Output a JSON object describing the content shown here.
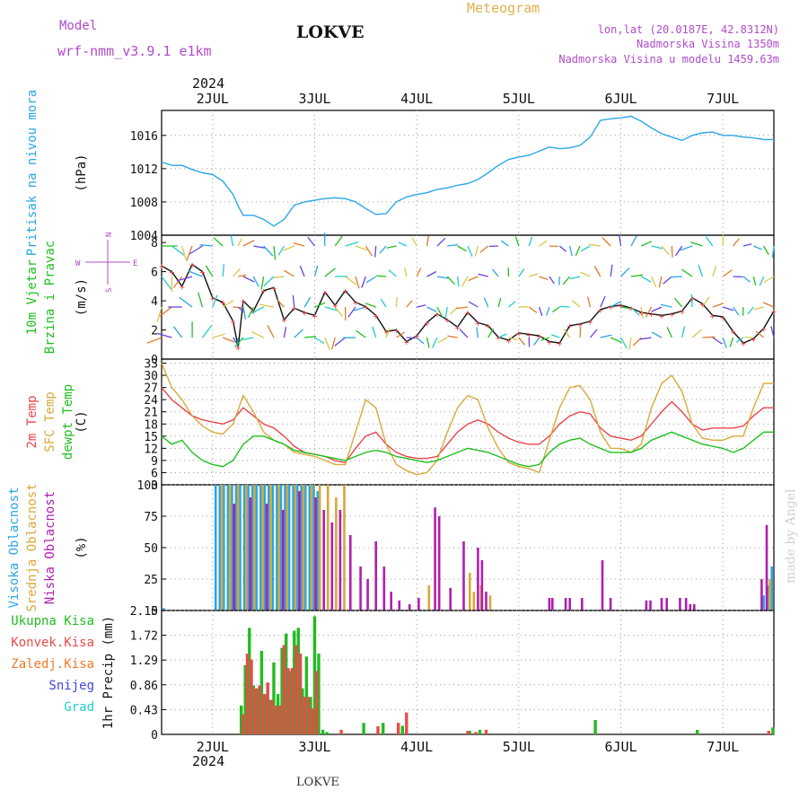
{
  "header": {
    "model_label": "Model",
    "model_name": "wrf-nmm_v3.9.1 e1km",
    "station": "LOKVE",
    "product": "Meteogram",
    "lonlat": "lon,lat (20.0187E, 42.8312N)",
    "elevation": "Nadmorska Visina 1350m",
    "model_elevation": "Nadmorska Visina u modelu 1459.63m",
    "year_top": "2024",
    "year_bottom": "2024",
    "footer_station": "LOKVE",
    "credit": "made by Angel"
  },
  "colors": {
    "pressure": "#2aa6e6",
    "temp2m": "#e8454a",
    "sfc": "#d9a83a",
    "dewpt": "#1fbf1f",
    "high": "#2aa6e6",
    "mid": "#d9a83a",
    "low": "#b01fb0",
    "total": "#22bb22",
    "convective": "#e84a4a",
    "frozen": "#ee7a2a",
    "snow": "#4444dd",
    "grad": "#22cccc",
    "model": "#b04cc9",
    "title_orange": "#e0b04a"
  },
  "axis": {
    "day_labels": [
      "2JUL",
      "3JUL",
      "4JUL",
      "5JUL",
      "6JUL",
      "7JUL"
    ],
    "day_values": [
      2,
      3,
      4,
      5,
      6,
      7
    ],
    "x_range": [
      1.5,
      7.5
    ]
  },
  "chart_data": [
    {
      "type": "line",
      "panel": "pressure",
      "ylabel_lines": [
        "Pritisak na nivou mora",
        "(hPa)"
      ],
      "ylim": [
        1004,
        1019
      ],
      "yticks": [
        1004,
        1008,
        1012,
        1016
      ],
      "grid": true,
      "series": [
        {
          "name": "Pritisak na nivou mora",
          "x": [
            1.5,
            1.6,
            1.7,
            1.8,
            1.9,
            2.0,
            2.1,
            2.2,
            2.25,
            2.3,
            2.4,
            2.5,
            2.6,
            2.7,
            2.8,
            2.9,
            3.0,
            3.1,
            3.2,
            3.3,
            3.4,
            3.5,
            3.6,
            3.7,
            3.8,
            3.9,
            4.0,
            4.1,
            4.2,
            4.3,
            4.4,
            4.5,
            4.6,
            4.7,
            4.8,
            4.9,
            5.0,
            5.1,
            5.2,
            5.3,
            5.4,
            5.5,
            5.6,
            5.7,
            5.8,
            5.9,
            6.0,
            6.1,
            6.2,
            6.3,
            6.4,
            6.5,
            6.6,
            6.7,
            6.8,
            6.9,
            7.0,
            7.1,
            7.2,
            7.3,
            7.4,
            7.5
          ],
          "y": [
            1012.8,
            1012.4,
            1012.4,
            1011.9,
            1011.5,
            1011.3,
            1010.5,
            1008.9,
            1007.5,
            1006.4,
            1006.4,
            1005.9,
            1005.1,
            1005.9,
            1007.6,
            1008.0,
            1008.2,
            1008.4,
            1008.5,
            1008.4,
            1008.0,
            1007.2,
            1006.5,
            1006.6,
            1008.0,
            1008.6,
            1008.9,
            1009.1,
            1009.5,
            1009.7,
            1010.0,
            1010.2,
            1010.7,
            1011.5,
            1012.4,
            1013.1,
            1013.4,
            1013.6,
            1014.1,
            1014.6,
            1014.4,
            1014.5,
            1014.8,
            1015.8,
            1017.8,
            1018.0,
            1018.1,
            1018.3,
            1017.7,
            1016.9,
            1016.2,
            1015.8,
            1015.4,
            1016.0,
            1016.3,
            1016.4,
            1016.0,
            1016.0,
            1015.8,
            1015.7,
            1015.5,
            1015.5
          ]
        }
      ]
    },
    {
      "type": "line",
      "panel": "wind",
      "ylabel_lines": [
        "10m Vjetar",
        "Brzina i Pravac",
        "(m/s)"
      ],
      "compass": [
        "W",
        "E",
        "N",
        "S"
      ],
      "ylim": [
        0,
        8.5
      ],
      "yticks": [
        0,
        2,
        4,
        6,
        8
      ],
      "grid": false,
      "series": [
        {
          "name": "10m Vjetar",
          "x": [
            1.5,
            1.6,
            1.7,
            1.8,
            1.9,
            2.0,
            2.1,
            2.2,
            2.25,
            2.3,
            2.4,
            2.5,
            2.6,
            2.7,
            2.8,
            2.9,
            3.0,
            3.1,
            3.2,
            3.3,
            3.4,
            3.5,
            3.6,
            3.7,
            3.8,
            3.9,
            4.0,
            4.1,
            4.2,
            4.3,
            4.4,
            4.5,
            4.6,
            4.7,
            4.8,
            4.9,
            5.0,
            5.1,
            5.2,
            5.3,
            5.4,
            5.5,
            5.6,
            5.7,
            5.8,
            5.9,
            6.0,
            6.1,
            6.2,
            6.3,
            6.4,
            6.5,
            6.6,
            6.7,
            6.8,
            6.9,
            7.0,
            7.1,
            7.2,
            7.3,
            7.4,
            7.5
          ],
          "y": [
            6.4,
            6.0,
            5.0,
            6.5,
            6.0,
            4.2,
            3.9,
            2.6,
            0.8,
            4.0,
            3.3,
            4.7,
            4.9,
            2.7,
            3.5,
            3.2,
            3.0,
            4.6,
            3.7,
            4.7,
            3.9,
            3.6,
            3.0,
            1.9,
            2.0,
            1.2,
            1.6,
            2.5,
            3.1,
            2.7,
            2.2,
            3.2,
            2.5,
            2.3,
            1.5,
            1.3,
            1.8,
            1.7,
            1.6,
            1.2,
            1.1,
            2.3,
            2.4,
            2.6,
            3.4,
            3.6,
            3.7,
            3.5,
            3.2,
            3.1,
            3.0,
            3.1,
            3.3,
            4.2,
            3.8,
            3.0,
            2.9,
            1.9,
            1.1,
            1.4,
            2.1,
            3.3
          ]
        }
      ]
    },
    {
      "type": "line",
      "panel": "temperature",
      "ylabel_lines": [
        "2m Temp",
        "SFC Temp",
        "dewpt Temp",
        "(C)"
      ],
      "ylim": [
        3,
        34
      ],
      "yticks": [
        3,
        6,
        9,
        12,
        15,
        18,
        21,
        24,
        27,
        30,
        33
      ],
      "grid": true,
      "series": [
        {
          "name": "2m Temp",
          "x": [
            1.5,
            1.6,
            1.7,
            1.8,
            1.9,
            2.0,
            2.1,
            2.2,
            2.3,
            2.4,
            2.5,
            2.6,
            2.7,
            2.8,
            2.9,
            3.0,
            3.1,
            3.2,
            3.3,
            3.4,
            3.5,
            3.6,
            3.7,
            3.8,
            3.9,
            4.0,
            4.1,
            4.2,
            4.3,
            4.4,
            4.5,
            4.6,
            4.7,
            4.8,
            4.9,
            5.0,
            5.1,
            5.2,
            5.3,
            5.4,
            5.5,
            5.6,
            5.7,
            5.8,
            5.9,
            6.0,
            6.1,
            6.2,
            6.3,
            6.4,
            6.5,
            6.6,
            6.7,
            6.8,
            6.9,
            7.0,
            7.1,
            7.2,
            7.3,
            7.4,
            7.5
          ],
          "y": [
            27,
            24,
            22,
            20,
            19,
            18.5,
            18,
            19,
            22,
            20,
            18,
            17,
            15,
            12.5,
            11,
            10.5,
            10,
            9,
            8.5,
            12,
            15,
            16,
            13,
            11,
            10,
            9.5,
            9.5,
            10,
            13,
            16,
            18,
            19,
            18,
            16,
            14.5,
            13.5,
            13,
            13,
            15,
            18,
            20,
            21,
            20.5,
            17,
            15,
            14.5,
            14,
            15,
            18,
            21,
            23.5,
            21,
            18,
            16.5,
            17,
            17,
            17,
            17.5,
            20,
            22,
            22
          ]
        },
        {
          "name": "SFC Temp",
          "x": [
            1.5,
            1.6,
            1.7,
            1.8,
            1.9,
            2.0,
            2.1,
            2.2,
            2.3,
            2.4,
            2.5,
            2.6,
            2.7,
            2.8,
            2.9,
            3.0,
            3.1,
            3.2,
            3.3,
            3.4,
            3.5,
            3.6,
            3.7,
            3.8,
            3.9,
            4.0,
            4.1,
            4.2,
            4.3,
            4.4,
            4.5,
            4.6,
            4.7,
            4.8,
            4.9,
            5.0,
            5.1,
            5.2,
            5.3,
            5.4,
            5.5,
            5.6,
            5.7,
            5.8,
            5.9,
            6.0,
            6.1,
            6.2,
            6.3,
            6.4,
            6.5,
            6.6,
            6.7,
            6.8,
            6.9,
            7.0,
            7.1,
            7.2,
            7.3,
            7.4,
            7.5
          ],
          "y": [
            33,
            27,
            24,
            20,
            17.5,
            16,
            15.5,
            18,
            25,
            21,
            16,
            14,
            13,
            11,
            10.5,
            10,
            9,
            8,
            8,
            16,
            24,
            22,
            13,
            8,
            6.5,
            5.5,
            6,
            9,
            16,
            22,
            25,
            24,
            17,
            12,
            8.5,
            7.5,
            7,
            6,
            14,
            22,
            27,
            27.5,
            24,
            16,
            12,
            12,
            11,
            13,
            22,
            28,
            30,
            26,
            18,
            14.5,
            14,
            14,
            15,
            15,
            22,
            28,
            28
          ]
        },
        {
          "name": "dewpt Temp",
          "x": [
            1.5,
            1.6,
            1.7,
            1.8,
            1.9,
            2.0,
            2.1,
            2.2,
            2.3,
            2.4,
            2.5,
            2.6,
            2.7,
            2.8,
            2.9,
            3.0,
            3.1,
            3.2,
            3.3,
            3.4,
            3.5,
            3.6,
            3.7,
            3.8,
            3.9,
            4.0,
            4.1,
            4.2,
            4.3,
            4.4,
            4.5,
            4.6,
            4.7,
            4.8,
            4.9,
            5.0,
            5.1,
            5.2,
            5.3,
            5.4,
            5.5,
            5.6,
            5.7,
            5.8,
            5.9,
            6.0,
            6.1,
            6.2,
            6.3,
            6.4,
            6.5,
            6.6,
            6.7,
            6.8,
            6.9,
            7.0,
            7.1,
            7.2,
            7.3,
            7.4,
            7.5
          ],
          "y": [
            15,
            13,
            14,
            11,
            9,
            8,
            7.5,
            9,
            13,
            15,
            15,
            14,
            13,
            11.5,
            11,
            10.5,
            10,
            9.5,
            9,
            10,
            11,
            11.5,
            11,
            10,
            9.5,
            9,
            8.5,
            9,
            10,
            11,
            12,
            11.5,
            11,
            10,
            9,
            8,
            7.5,
            8,
            11,
            13,
            14,
            14.5,
            13,
            12,
            11,
            11,
            11,
            12,
            14,
            15,
            16,
            15,
            14,
            13,
            12.5,
            12,
            11,
            12,
            14,
            16,
            16
          ]
        }
      ]
    },
    {
      "type": "bar",
      "panel": "clouds",
      "ylabel_lines": [
        "Visoka Oblacnost",
        "Srednja Oblacnost",
        "Niska Oblacnost",
        "(%)"
      ],
      "ylim": [
        0,
        100
      ],
      "yticks": [
        0,
        25,
        50,
        75,
        100
      ],
      "grid": true,
      "series": [
        {
          "name": "Visoka Oblacnost",
          "x": [
            1.52,
            2.03,
            2.07,
            2.11,
            2.15,
            2.19,
            2.23,
            2.27,
            2.31,
            2.35,
            2.39,
            2.43,
            2.47,
            2.51,
            2.55,
            2.59,
            2.63,
            2.67,
            2.71,
            2.75,
            2.79,
            2.83,
            2.87,
            2.91,
            2.95,
            2.99,
            3.03,
            7.4,
            7.44,
            7.48
          ],
          "y": [
            2,
            100,
            100,
            100,
            100,
            100,
            100,
            100,
            100,
            100,
            100,
            100,
            100,
            100,
            100,
            100,
            100,
            100,
            100,
            100,
            100,
            100,
            100,
            100,
            100,
            100,
            95,
            12,
            20,
            35
          ]
        },
        {
          "name": "Srednja Oblacnost",
          "x": [
            2.09,
            2.17,
            2.25,
            2.33,
            2.41,
            2.49,
            2.57,
            2.65,
            2.73,
            2.81,
            2.89,
            2.97,
            3.05,
            3.13,
            3.21,
            3.29,
            4.12,
            4.52,
            4.56,
            4.63,
            4.72,
            7.46
          ],
          "y": [
            100,
            100,
            100,
            100,
            100,
            100,
            100,
            100,
            100,
            100,
            100,
            100,
            100,
            100,
            90,
            100,
            20,
            30,
            15,
            20,
            12,
            25
          ]
        },
        {
          "name": "Niska Oblacnost",
          "x": [
            2.21,
            2.37,
            2.53,
            2.69,
            2.85,
            3.01,
            3.09,
            3.17,
            3.25,
            3.35,
            3.45,
            3.52,
            3.6,
            3.68,
            3.75,
            3.83,
            3.93,
            4.02,
            4.18,
            4.22,
            4.33,
            4.46,
            4.6,
            4.64,
            4.68,
            5.3,
            5.33,
            5.46,
            5.5,
            5.62,
            5.82,
            5.9,
            6.25,
            6.29,
            6.4,
            6.45,
            6.58,
            6.64,
            6.68,
            6.72,
            7.38,
            7.43
          ],
          "y": [
            85,
            90,
            85,
            80,
            95,
            90,
            80,
            70,
            80,
            60,
            35,
            25,
            55,
            35,
            15,
            8,
            5,
            10,
            82,
            75,
            18,
            55,
            50,
            40,
            15,
            10,
            10,
            10,
            10,
            10,
            40,
            10,
            8,
            8,
            10,
            10,
            10,
            10,
            5,
            5,
            25,
            68
          ]
        }
      ]
    },
    {
      "type": "bar",
      "panel": "precipitation",
      "ylabel_lines": [
        "Ukupna Kisa",
        "Konvek.Kisa",
        "Zaledj.Kisa",
        "Snijeg",
        "Grad",
        "1hr Precip (mm)"
      ],
      "ylim": [
        0,
        2.15
      ],
      "yticks": [
        0,
        0.43,
        0.86,
        1.29,
        1.72,
        2.15
      ],
      "tick_labels": [
        "0",
        "0.43",
        "0.86",
        "1.29",
        "1.72",
        "2.15"
      ],
      "grid": true,
      "series": [
        {
          "name": "Ukupna Kisa",
          "x": [
            2.28,
            2.32,
            2.36,
            2.4,
            2.44,
            2.48,
            2.52,
            2.56,
            2.6,
            2.64,
            2.68,
            2.72,
            2.76,
            2.8,
            2.84,
            2.88,
            2.92,
            2.96,
            3.0,
            3.04,
            3.08,
            3.12,
            3.48,
            3.67,
            3.86,
            4.52,
            4.62,
            5.75,
            6.75,
            7.49
          ],
          "y": [
            0.5,
            1.2,
            1.85,
            0.85,
            0.8,
            1.45,
            0.7,
            0.6,
            1.25,
            0.7,
            1.5,
            1.75,
            1.1,
            1.8,
            1.85,
            0.8,
            1.35,
            0.65,
            2.05,
            1.4,
            0.08,
            0.04,
            0.2,
            0.2,
            0.15,
            0.06,
            0.08,
            0.25,
            0.08,
            0.12
          ]
        },
        {
          "name": "Konvek.Kisa",
          "x": [
            2.3,
            2.34,
            2.38,
            2.42,
            2.46,
            2.5,
            2.54,
            2.58,
            2.62,
            2.66,
            2.7,
            2.74,
            2.78,
            2.82,
            2.86,
            2.9,
            2.94,
            2.98,
            3.02,
            3.26,
            3.62,
            3.82,
            3.9,
            4.5,
            4.58,
            4.68,
            7.45
          ],
          "y": [
            0.35,
            1.4,
            1.3,
            0.8,
            0.85,
            0.7,
            0.9,
            0.6,
            0.5,
            0.5,
            1.55,
            1.15,
            1.15,
            1.55,
            1.4,
            0.65,
            0.65,
            0.45,
            1.1,
            0.08,
            0.14,
            0.2,
            0.38,
            0.06,
            0.04,
            0.08,
            0.06
          ]
        }
      ]
    }
  ]
}
